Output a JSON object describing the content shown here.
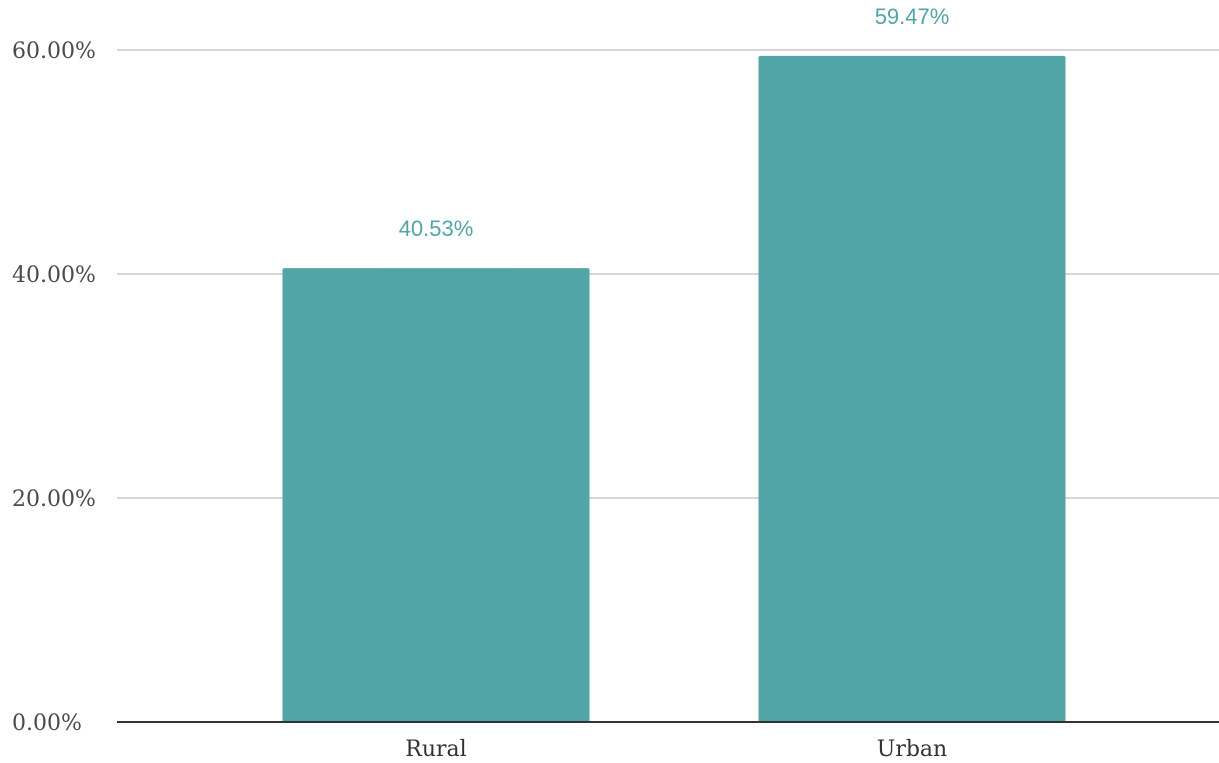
{
  "chart_data": {
    "type": "bar",
    "title": "",
    "xlabel": "",
    "ylabel": "",
    "categories": [
      "Rural",
      "Urban"
    ],
    "values": [
      40.53,
      59.47
    ],
    "value_labels": [
      "40.53%",
      "59.47%"
    ],
    "ylim": [
      0,
      60
    ],
    "yticks": [
      0,
      20,
      40,
      60
    ],
    "ytick_labels": [
      "0.00%",
      "20.00%",
      "40.00%",
      "60.00%"
    ],
    "grid": true,
    "legend": "none",
    "bar_color": "#52a5a7",
    "label_color": "#52a5a7"
  }
}
